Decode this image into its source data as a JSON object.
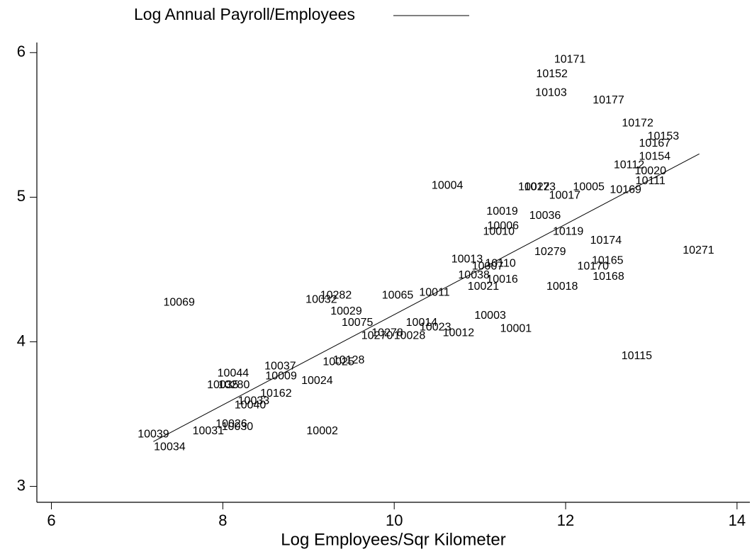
{
  "chart_data": {
    "type": "scatter",
    "x_label": "Log Employees/Sqr Kilometer",
    "xlim": [
      5.83,
      14.15
    ],
    "ylim": [
      2.89,
      6.07
    ],
    "xticks": [
      6,
      8,
      10,
      12,
      14
    ],
    "yticks": [
      3,
      4,
      5,
      6
    ],
    "legend_position": "top",
    "series": [
      {
        "name": "Log Annual Payroll/Employees",
        "color": "#000000",
        "x": [
          7.19,
          13.56
        ],
        "values": [
          3.31,
          5.3
        ]
      }
    ],
    "points": {
      "color": "#000000",
      "labels": [
        "10171",
        "10152",
        "10103",
        "10177",
        "10172",
        "10153",
        "10167",
        "10154",
        "10112",
        "10020",
        "10111",
        "10004",
        "10022",
        "10173",
        "10017",
        "10005",
        "10169",
        "10019",
        "10036",
        "10006",
        "10010",
        "10119",
        "10174",
        "10271",
        "10279",
        "10013",
        "10110",
        "10007",
        "10165",
        "10170",
        "10038",
        "10016",
        "10168",
        "10021",
        "10018",
        "10011",
        "10065",
        "10282",
        "10032",
        "10069",
        "10029",
        "10003",
        "10075",
        "10014",
        "10023",
        "10001",
        "10012",
        "10278",
        "10270",
        "10028",
        "10115",
        "10128",
        "10025",
        "10037",
        "10044",
        "10009",
        "10024",
        "10035",
        "10280",
        "10162",
        "10033",
        "10040",
        "10026",
        "10030",
        "10039",
        "10031",
        "10002",
        "10034"
      ],
      "x": [
        12.05,
        11.84,
        11.83,
        12.5,
        12.84,
        13.14,
        13.04,
        13.04,
        12.74,
        12.99,
        12.99,
        10.62,
        11.63,
        11.7,
        11.99,
        12.27,
        12.7,
        11.26,
        11.76,
        11.27,
        11.22,
        12.03,
        12.47,
        13.55,
        11.82,
        10.85,
        11.24,
        11.09,
        12.49,
        12.32,
        10.93,
        11.26,
        12.5,
        11.04,
        11.96,
        10.47,
        10.04,
        9.32,
        9.15,
        7.49,
        9.44,
        11.12,
        9.57,
        10.32,
        10.48,
        11.42,
        10.75,
        9.92,
        9.8,
        10.18,
        12.83,
        9.47,
        9.35,
        8.67,
        8.12,
        8.68,
        9.1,
        8.0,
        8.13,
        8.62,
        8.36,
        8.32,
        8.1,
        8.17,
        7.19,
        7.83,
        9.16,
        7.38
      ],
      "y": [
        5.95,
        5.85,
        5.72,
        5.67,
        5.51,
        5.42,
        5.37,
        5.28,
        5.22,
        5.18,
        5.11,
        5.08,
        5.07,
        5.07,
        5.01,
        5.07,
        5.05,
        4.9,
        4.87,
        4.8,
        4.76,
        4.76,
        4.7,
        4.63,
        4.62,
        4.57,
        4.54,
        4.52,
        4.56,
        4.52,
        4.46,
        4.43,
        4.45,
        4.38,
        4.38,
        4.34,
        4.32,
        4.32,
        4.29,
        4.27,
        4.21,
        4.18,
        4.13,
        4.13,
        4.1,
        4.09,
        4.06,
        4.06,
        4.04,
        4.04,
        3.9,
        3.87,
        3.86,
        3.83,
        3.78,
        3.76,
        3.73,
        3.7,
        3.7,
        3.64,
        3.59,
        3.56,
        3.43,
        3.41,
        3.36,
        3.38,
        3.38,
        3.27
      ]
    }
  }
}
